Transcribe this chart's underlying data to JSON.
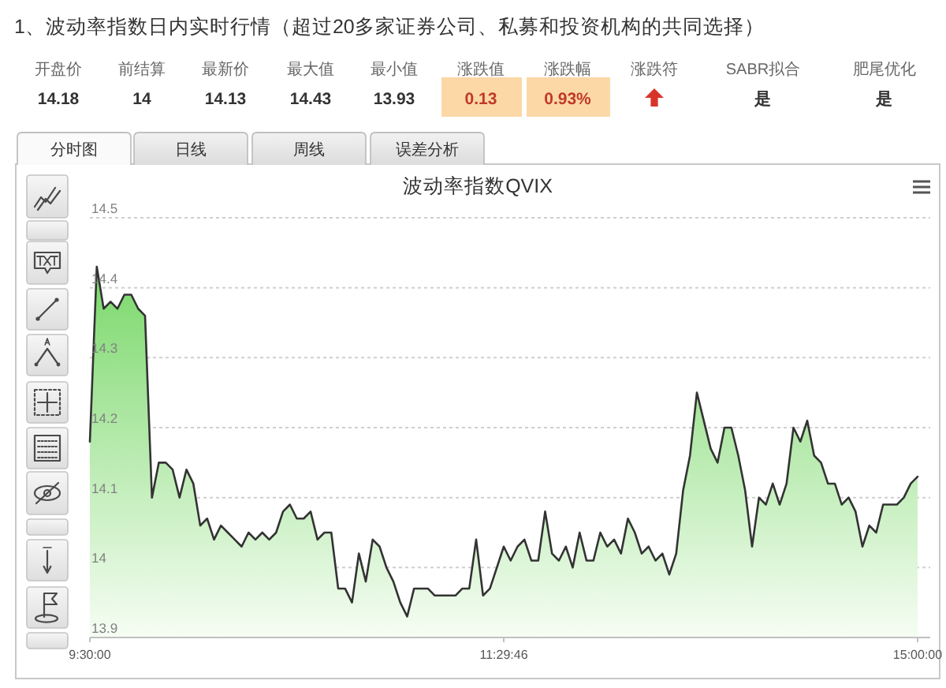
{
  "chart_data": {
    "type": "area",
    "title": "波动率指数QVIX",
    "annotations": [
      "1、波动率指数日内实时行情（超过20多家证券公司、私募和投资机构的共同选择）",
      "开盘价",
      "前结算",
      "最新价",
      "最大值",
      "最小值",
      "涨跌值",
      "涨跌幅",
      "涨跌符",
      "SABR拟合",
      "肥尾优化",
      "14.18",
      "14",
      "14.13",
      "14.43",
      "13.93",
      "0.13",
      "0.93%",
      "是",
      "是",
      "分时图",
      "日线",
      "周线",
      "误差分析"
    ],
    "categories": [
      "9:30:00",
      null,
      null,
      null,
      null,
      null,
      null,
      null,
      null,
      null,
      null,
      null,
      null,
      null,
      null,
      null,
      null,
      null,
      null,
      null,
      null,
      null,
      null,
      null,
      null,
      null,
      null,
      null,
      null,
      null,
      null,
      null,
      null,
      null,
      null,
      null,
      null,
      null,
      null,
      null,
      null,
      null,
      null,
      null,
      null,
      null,
      null,
      null,
      null,
      null,
      null,
      null,
      null,
      null,
      null,
      null,
      null,
      null,
      null,
      null,
      "11:29:46",
      null,
      null,
      null,
      null,
      null,
      null,
      null,
      null,
      null,
      null,
      null,
      null,
      null,
      null,
      null,
      null,
      null,
      null,
      null,
      null,
      null,
      null,
      null,
      null,
      null,
      null,
      null,
      null,
      null,
      null,
      null,
      null,
      null,
      null,
      null,
      null,
      null,
      null,
      null,
      null,
      null,
      null,
      null,
      null,
      null,
      null,
      null,
      null,
      null,
      null,
      null,
      null,
      null,
      null,
      null,
      null,
      null,
      null,
      null,
      "15:00:00"
    ],
    "series": [
      {
        "color": "#333333",
        "values": [
          14.18,
          14.43,
          14.37,
          14.38,
          14.37,
          14.39,
          14.39,
          14.37,
          14.36,
          14.1,
          14.15,
          14.15,
          14.14,
          14.1,
          14.14,
          14.12,
          14.06,
          14.07,
          14.04,
          14.06,
          14.05,
          14.04,
          14.03,
          14.05,
          14.04,
          14.05,
          14.04,
          14.05,
          14.08,
          14.09,
          14.07,
          14.07,
          14.08,
          14.04,
          14.05,
          14.05,
          13.97,
          13.97,
          13.95,
          14.02,
          13.98,
          14.04,
          14.03,
          14,
          13.98,
          13.95,
          13.93,
          13.97,
          13.97,
          13.97,
          13.96,
          13.96,
          13.96,
          13.96,
          13.97,
          13.97,
          14.04,
          13.96,
          13.97,
          14,
          14.03,
          14.01,
          14.03,
          14.04,
          14.01,
          14.01,
          14.08,
          14.02,
          14.01,
          14.03,
          14,
          14.05,
          14.01,
          14.01,
          14.05,
          14.03,
          14.04,
          14.02,
          14.07,
          14.05,
          14.02,
          14.03,
          14.01,
          14.02,
          13.99,
          14.02,
          14.11,
          14.16,
          14.25,
          14.21,
          14.17,
          14.15,
          14.2,
          14.2,
          14.16,
          14.11,
          14.03,
          14.1,
          14.09,
          14.12,
          14.09,
          14.12,
          14.2,
          14.18,
          14.21,
          14.16,
          14.15,
          14.12,
          14.12,
          14.09,
          14.1,
          14.08,
          14.03,
          14.06,
          14.05,
          14.09,
          14.09,
          14.09,
          14.1,
          14.12,
          14.13
        ]
      }
    ],
    "ylim": [
      13.9,
      14.5
    ],
    "yticks": [
      13.9,
      14,
      14.1,
      14.2,
      14.3,
      14.4,
      14.5
    ],
    "grid": "y"
  }
}
